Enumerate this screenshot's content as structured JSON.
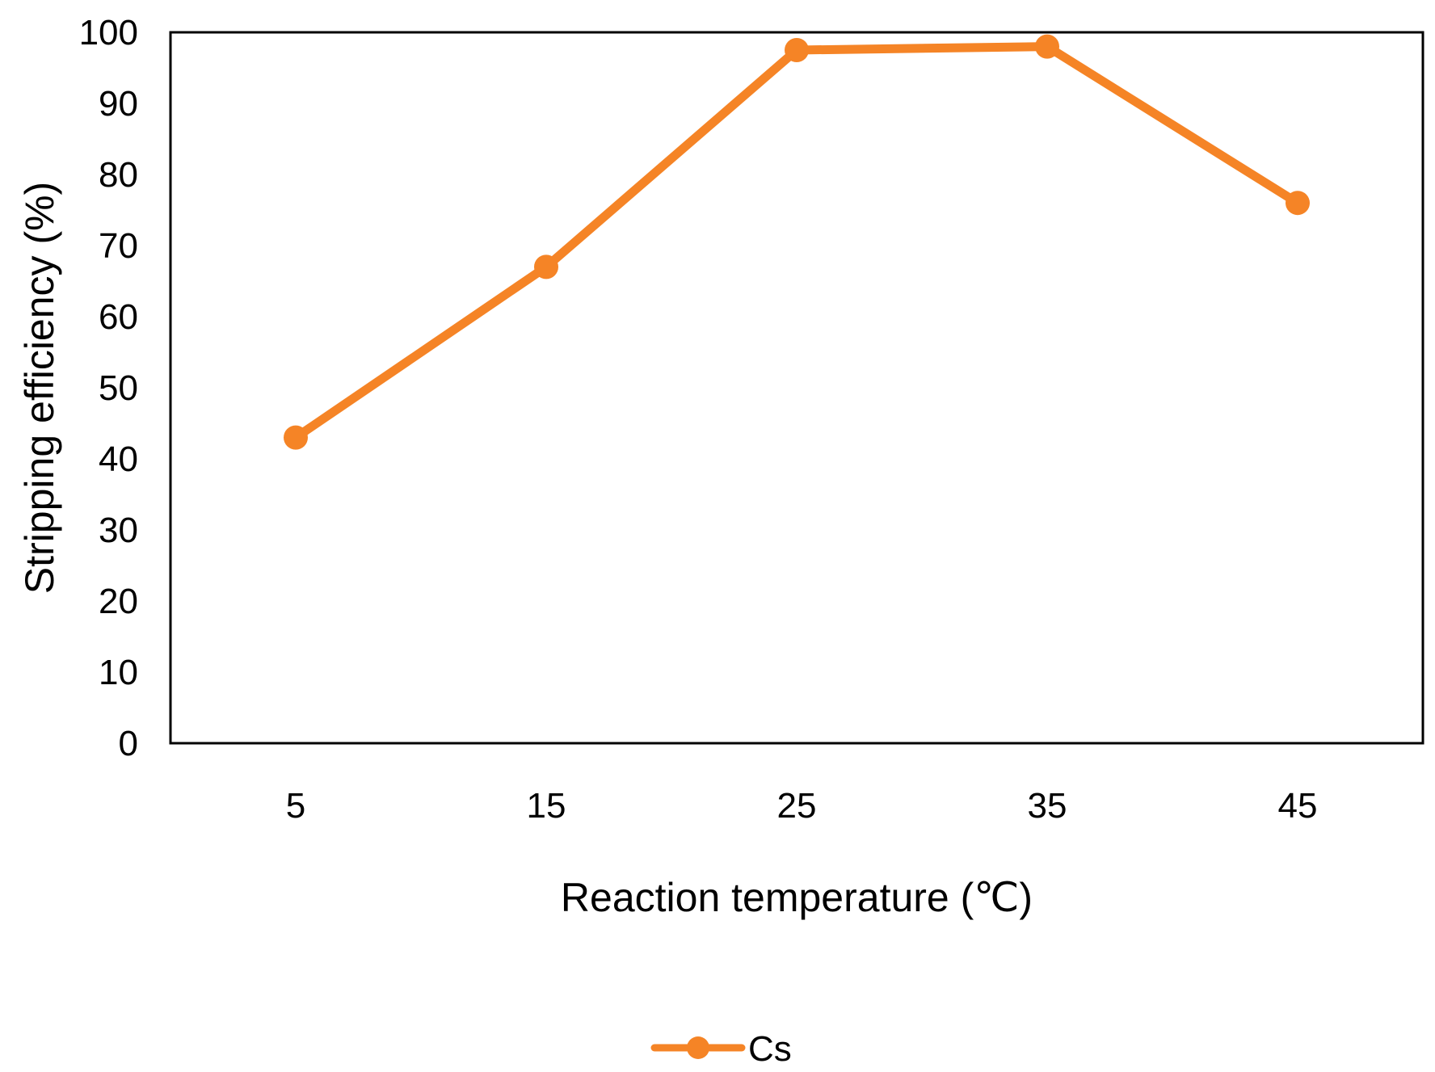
{
  "chart_data": {
    "type": "line",
    "categories": [
      "5",
      "15",
      "25",
      "35",
      "45"
    ],
    "series": [
      {
        "name": "Cs",
        "values": [
          43,
          67,
          97.5,
          98,
          76
        ],
        "color": "#f58426"
      }
    ],
    "xlabel": "Reaction temperature (℃)",
    "ylabel": "Stripping efficiency (%)",
    "ylim": [
      0,
      100
    ],
    "yticks": [
      "0",
      "10",
      "20",
      "30",
      "40",
      "50",
      "60",
      "70",
      "80",
      "90",
      "100"
    ],
    "grid": false,
    "legend_position": "bottom"
  }
}
